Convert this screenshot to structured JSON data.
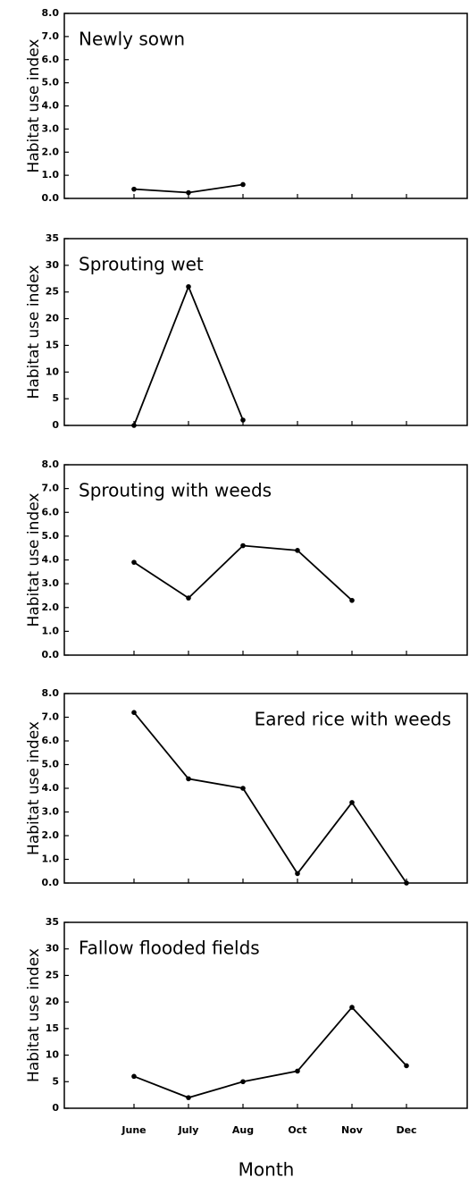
{
  "chart_data": [
    {
      "type": "line",
      "title": "Newly sown",
      "y_label": "Habitat use index",
      "categories": [
        null,
        null,
        null,
        null,
        null,
        null
      ],
      "series": [
        {
          "color": "#000000",
          "values": [
            0.4,
            0.25,
            0.6,
            null,
            null,
            null
          ]
        }
      ],
      "ylim": [
        0,
        8
      ],
      "yticks": [
        {
          "value": 0,
          "label": "0.0"
        },
        {
          "value": 1,
          "label": "1.0"
        },
        {
          "value": 2,
          "label": "2.0"
        },
        {
          "value": 3,
          "label": "3.0"
        },
        {
          "value": 4,
          "label": "4.0"
        },
        {
          "value": 5,
          "label": "5.0"
        },
        {
          "value": 6,
          "label": "6.0"
        },
        {
          "value": 7,
          "label": "7.0"
        },
        {
          "value": 8,
          "label": "8.0"
        }
      ]
    },
    {
      "type": "line",
      "title": "Sprouting wet",
      "y_label": "Habitat use index",
      "categories": [
        null,
        null,
        null,
        null,
        null,
        null
      ],
      "series": [
        {
          "color": "#000000",
          "values": [
            0,
            26,
            1,
            null,
            null,
            null
          ]
        }
      ],
      "ylim": [
        0,
        35
      ],
      "yticks": [
        0,
        5,
        10,
        15,
        20,
        25,
        30,
        35
      ]
    },
    {
      "type": "line",
      "title": "Sprouting with weeds",
      "y_label": "Habitat use index",
      "categories": [
        null,
        null,
        null,
        null,
        null,
        null
      ],
      "series": [
        {
          "color": "#000000",
          "values": [
            3.9,
            2.4,
            4.6,
            4.4,
            2.3,
            null
          ]
        }
      ],
      "ylim": [
        0,
        8
      ],
      "yticks": [
        {
          "value": 0,
          "label": "0.0"
        },
        {
          "value": 1,
          "label": "1.0"
        },
        {
          "value": 2,
          "label": "2.0"
        },
        {
          "value": 3,
          "label": "3.0"
        },
        {
          "value": 4,
          "label": "4.0"
        },
        {
          "value": 5,
          "label": "5.0"
        },
        {
          "value": 6,
          "label": "6.0"
        },
        {
          "value": 7,
          "label": "7.0"
        },
        {
          "value": 8,
          "label": "8.0"
        }
      ]
    },
    {
      "type": "line",
      "title": "Eared rice with weeds",
      "y_label": "Habitat use index",
      "categories": [
        null,
        null,
        null,
        null,
        null,
        null
      ],
      "series": [
        {
          "color": "#000000",
          "values": [
            7.2,
            4.4,
            4.0,
            0.4,
            3.4,
            0.0
          ]
        }
      ],
      "ylim": [
        0,
        8
      ],
      "yticks": [
        {
          "value": 0,
          "label": "0.0"
        },
        {
          "value": 1,
          "label": "1.0"
        },
        {
          "value": 2,
          "label": "2.0"
        },
        {
          "value": 3,
          "label": "3.0"
        },
        {
          "value": 4,
          "label": "4.0"
        },
        {
          "value": 5,
          "label": "5.0"
        },
        {
          "value": 6,
          "label": "6.0"
        },
        {
          "value": 7,
          "label": "7.0"
        },
        {
          "value": 8,
          "label": "8.0"
        }
      ]
    },
    {
      "type": "line",
      "title": "Fallow flooded fields",
      "y_label": "Habitat use index",
      "x_label": "Month",
      "categories": [
        "June",
        "July",
        "Aug",
        "Oct",
        "Nov",
        "Dec"
      ],
      "series": [
        {
          "color": "#000000",
          "values": [
            6,
            2,
            5,
            7,
            19,
            8
          ]
        }
      ],
      "ylim": [
        0,
        35
      ],
      "yticks": [
        0,
        5,
        10,
        15,
        20,
        25,
        30,
        35
      ]
    }
  ]
}
